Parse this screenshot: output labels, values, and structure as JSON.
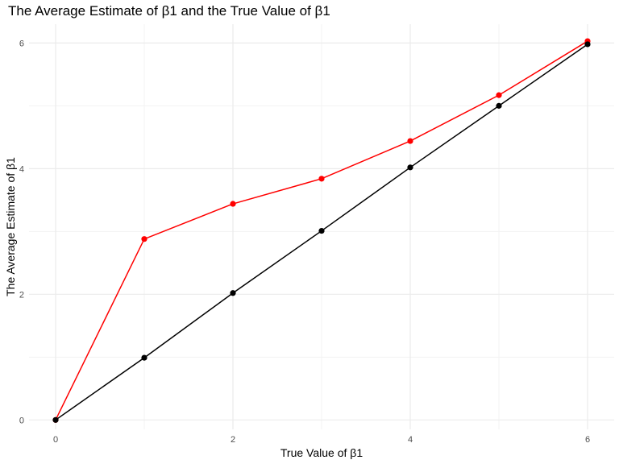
{
  "chart_data": {
    "type": "line",
    "title": "The Average Estimate of β1 and the True Value of β1",
    "xlabel": "True Value of β1",
    "ylabel": "The Average Estimate of β1",
    "xlim": [
      -0.3,
      6.3
    ],
    "ylim": [
      -0.15,
      6.3
    ],
    "xticks": [
      0,
      2,
      4,
      6
    ],
    "yticks": [
      0,
      2,
      4,
      6
    ],
    "x_tick_labels": [
      "0",
      "2",
      "4",
      "6"
    ],
    "y_tick_labels": [
      "0",
      "2",
      "4",
      "6"
    ],
    "grid": true,
    "legend": "none",
    "series": [
      {
        "color": "#ff0000",
        "x": [
          0,
          1,
          2,
          3,
          4,
          5,
          6
        ],
        "values": [
          0.0,
          2.88,
          3.44,
          3.84,
          4.44,
          5.17,
          6.03
        ]
      },
      {
        "color": "#000000",
        "x": [
          0,
          1,
          2,
          3,
          4,
          5,
          6
        ],
        "values": [
          0.0,
          0.99,
          2.02,
          3.01,
          4.02,
          5.0,
          5.98
        ]
      }
    ]
  }
}
